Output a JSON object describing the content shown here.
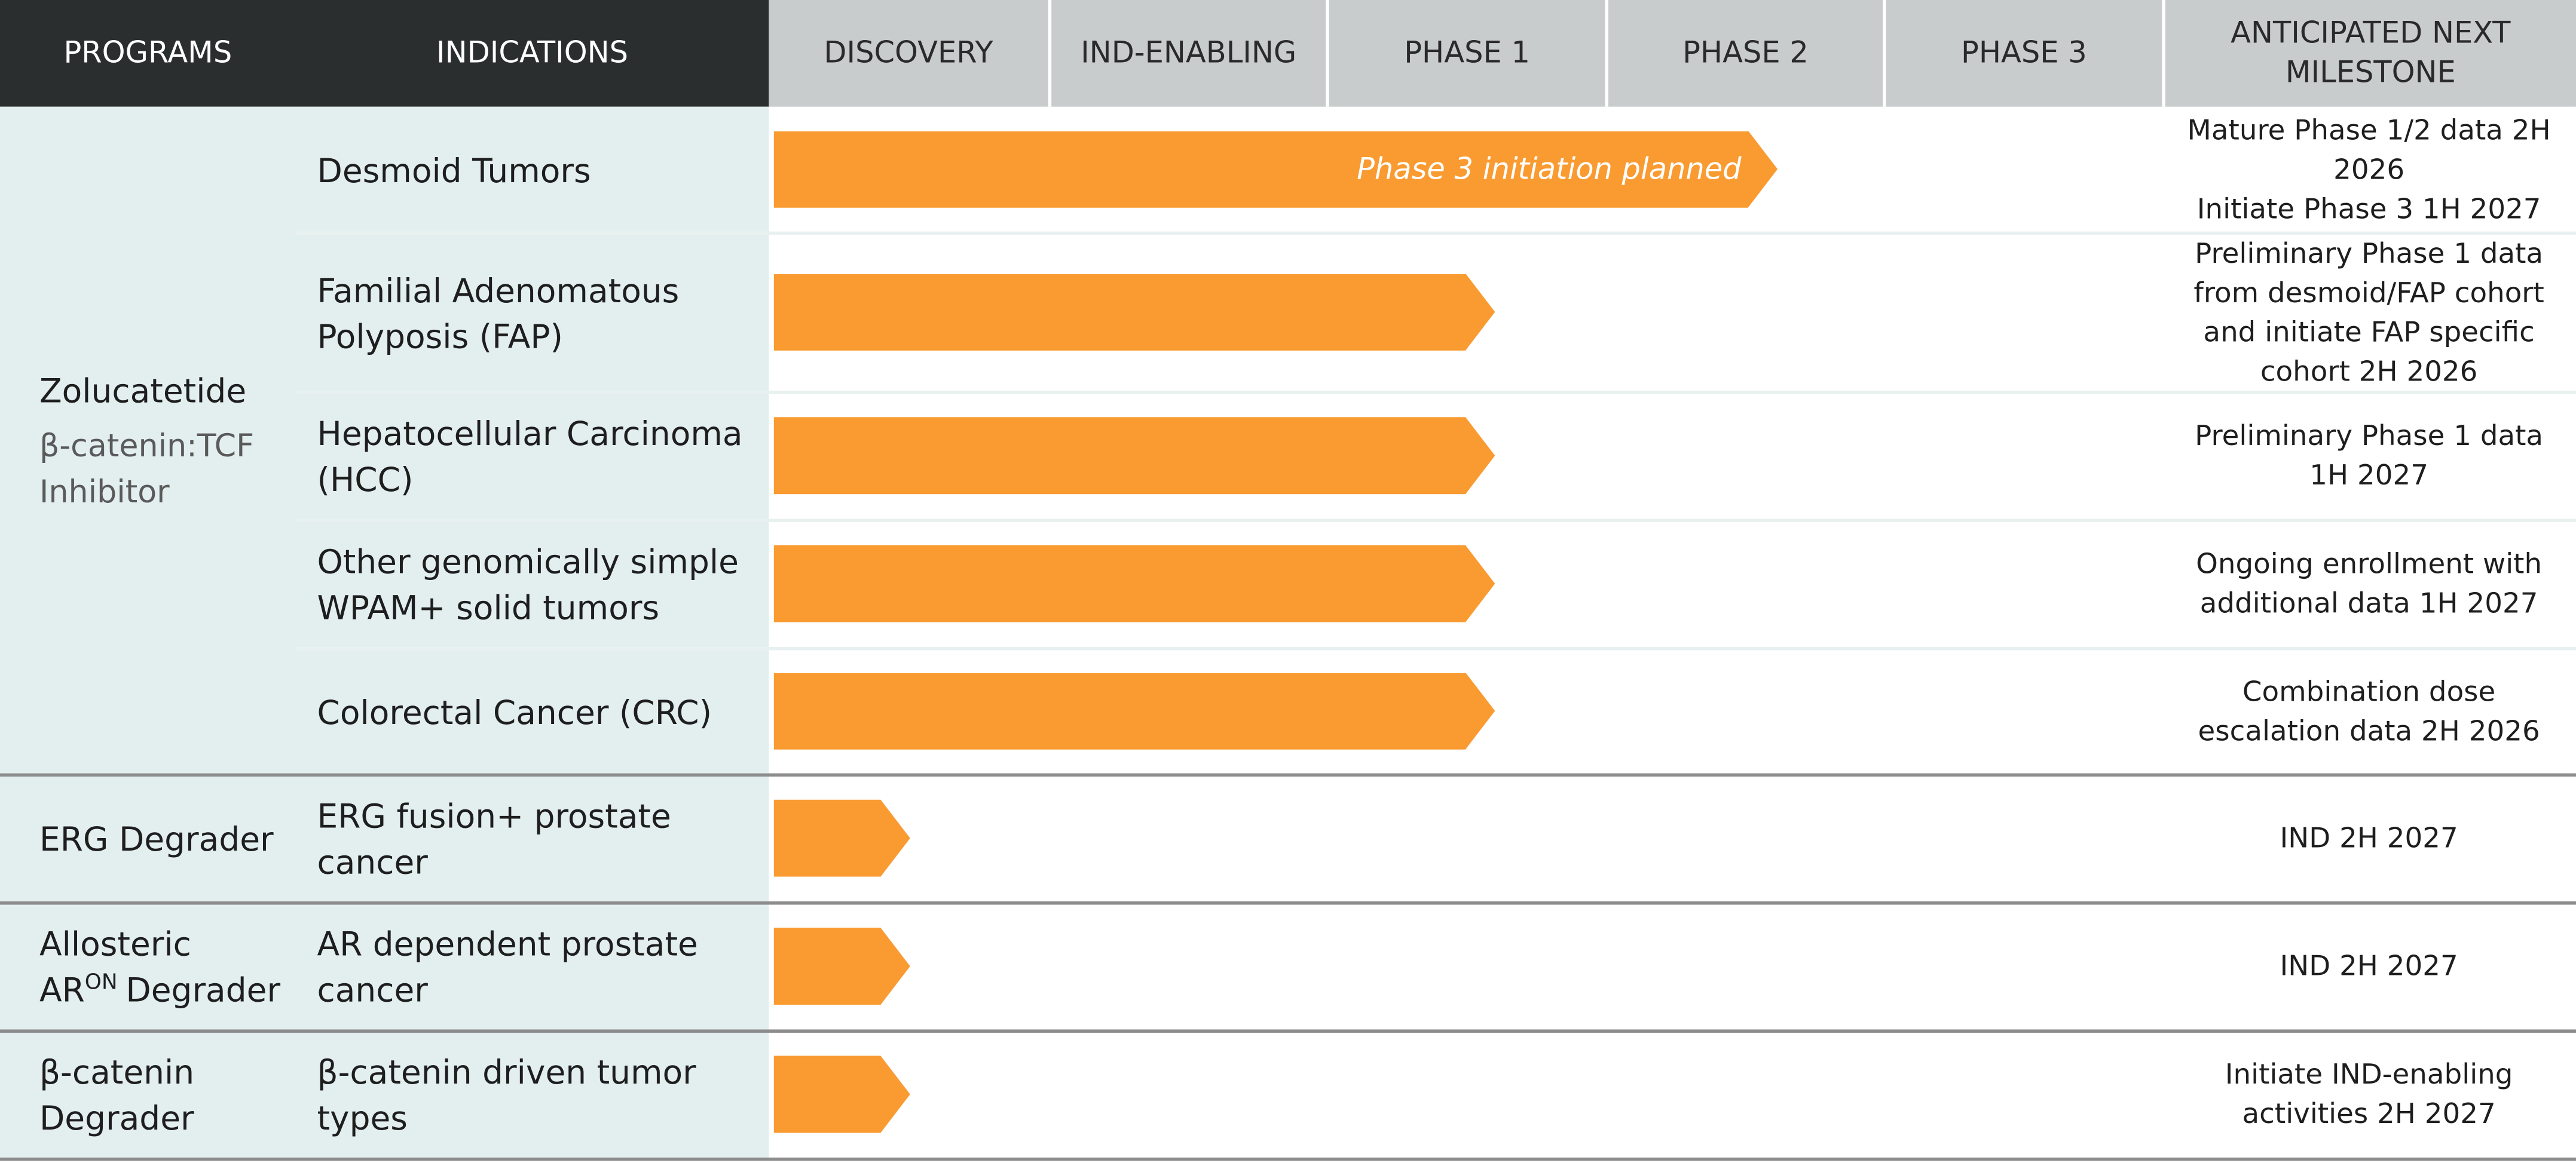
{
  "header": {
    "columns": [
      "PROGRAMS",
      "INDICATIONS",
      "DISCOVERY",
      "IND-ENABLING",
      "PHASE 1",
      "PHASE 2",
      "PHASE 3",
      "ANTICIPATED NEXT MILESTONE"
    ]
  },
  "programs": [
    {
      "name": "Zolucatetide",
      "subtitle": "β-catenin:TCF Inhibitor",
      "indications": [
        {
          "name": "Desmoid Tumors",
          "bar_label": "Phase 3 initiation planned",
          "milestone": [
            "Mature Phase 1/2 data 2H 2026",
            "Initiate Phase 3 1H 2027"
          ]
        },
        {
          "name": "Familial Adenomatous Polyposis (FAP)",
          "milestone": [
            "Preliminary Phase 1 data from desmoid/FAP cohort and initiate FAP specific cohort 2H 2026"
          ]
        },
        {
          "name": "Hepatocellular Carcinoma (HCC)",
          "milestone": [
            "Preliminary Phase 1 data 1H 2027"
          ]
        },
        {
          "name": "Other genomically simple WPAM+ solid tumors",
          "milestone": [
            "Ongoing enrollment with additional data 1H 2027"
          ]
        },
        {
          "name": "Colorectal Cancer (CRC)",
          "milestone": [
            "Combination dose escalation data 2H 2026"
          ]
        }
      ]
    },
    {
      "name": "ERG Degrader",
      "indications": [
        {
          "name": "ERG fusion+ prostate cancer",
          "milestone": [
            "IND 2H 2027"
          ]
        }
      ]
    },
    {
      "name": "Allosteric AR",
      "name_sup": "ON",
      "name_after": "Degrader",
      "indications": [
        {
          "name": "AR dependent prostate cancer",
          "milestone": [
            "IND 2H 2027"
          ]
        }
      ]
    },
    {
      "name": "β-catenin Degrader",
      "indications": [
        {
          "name": "β-catenin driven tumor types",
          "milestone": [
            "Initiate IND-enabling activities 2H 2027"
          ]
        }
      ]
    }
  ]
}
